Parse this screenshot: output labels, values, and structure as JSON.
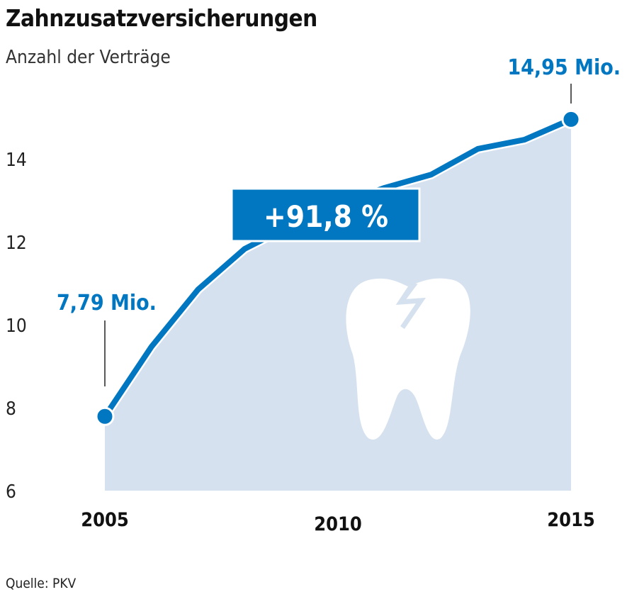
{
  "chart_data": {
    "type": "area",
    "title": "Zahnzusatzversicherungen",
    "subtitle": "Anzahl der Verträge",
    "ylabel": "Mio.",
    "xlabel": "",
    "x": [
      2005,
      2006,
      2007,
      2008,
      2009,
      2010,
      2011,
      2012,
      2013,
      2014,
      2015
    ],
    "values": [
      7.79,
      9.47,
      10.85,
      11.83,
      12.4,
      12.9,
      13.3,
      13.62,
      14.24,
      14.46,
      14.95
    ],
    "ylim": [
      6,
      15
    ],
    "yticks": [
      "6",
      "8",
      "10",
      "12",
      "14"
    ],
    "ytick_values": [
      6,
      8,
      10,
      12,
      14
    ],
    "xticks": [
      "2005",
      "2010",
      "2015"
    ],
    "xtick_values": [
      2005,
      2010,
      2015
    ],
    "annotations": {
      "start": "7,79 Mio.",
      "end": "14,95 Mio.",
      "change": "+91,8 %"
    },
    "grid": false,
    "colors": {
      "line": "#0077c0",
      "area": "#d5e1ef",
      "box": "#0077c0"
    }
  },
  "source": "Quelle: PKV",
  "icon": "broken-tooth-icon"
}
